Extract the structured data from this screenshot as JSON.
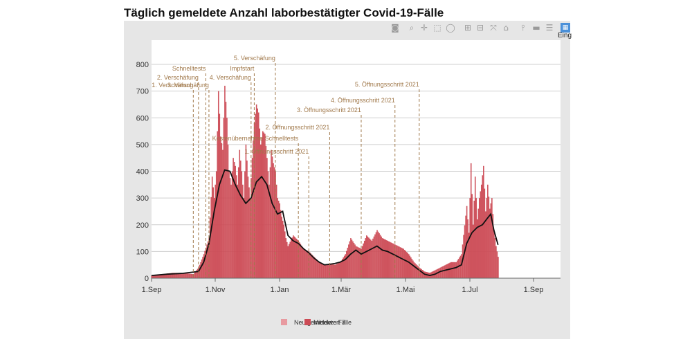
{
  "title": "Täglich gemeldete Anzahl laborbestätigter Covid-19-Fälle",
  "toolbar": {
    "icons": [
      "camera-icon",
      "zoom-icon",
      "pan-icon",
      "box-select-icon",
      "lasso-icon",
      "zoom-in-icon",
      "zoom-out-icon",
      "autoscale-icon",
      "home-icon",
      "spike-lines-icon",
      "hover-closest-icon",
      "hover-compare-icon",
      "chart-icon"
    ],
    "active_label": "Eing"
  },
  "colors": {
    "bars": "#cc4b55",
    "line": "#111111",
    "annotation": "#a0784a",
    "grid": "#cfcfcf"
  },
  "chart_data": {
    "type": "bar",
    "title": "Täglich gemeldete Anzahl laborbestätigter Covid-19-Fälle",
    "x_ticks": [
      "1.Sep",
      "1.Nov",
      "1.Jan",
      "1.Mär",
      "1.Mai",
      "1.Jul",
      "1.Sep"
    ],
    "ylim": [
      0,
      880
    ],
    "y_ticks": [
      0,
      100,
      200,
      300,
      400,
      500,
      600,
      700,
      800
    ],
    "grid": true,
    "legend_position": "bottom",
    "legend": [
      "Neu gemeldete Fälle",
      "Mittelwert 7"
    ],
    "series": [
      {
        "name": "Neu gemeldete Fälle",
        "type": "bar",
        "points": [
          [
            0,
            10
          ],
          [
            10,
            15
          ],
          [
            20,
            20
          ],
          [
            30,
            20
          ],
          [
            40,
            15
          ],
          [
            45,
            40
          ],
          [
            50,
            90
          ],
          [
            55,
            150
          ],
          [
            58,
            380
          ],
          [
            60,
            300
          ],
          [
            62,
            400
          ],
          [
            64,
            700
          ],
          [
            66,
            530
          ],
          [
            68,
            480
          ],
          [
            70,
            720
          ],
          [
            72,
            600
          ],
          [
            74,
            400
          ],
          [
            76,
            350
          ],
          [
            78,
            450
          ],
          [
            80,
            420
          ],
          [
            82,
            350
          ],
          [
            84,
            480
          ],
          [
            86,
            400
          ],
          [
            88,
            300
          ],
          [
            90,
            500
          ],
          [
            92,
            380
          ],
          [
            94,
            300
          ],
          [
            96,
            450
          ],
          [
            98,
            580
          ],
          [
            100,
            650
          ],
          [
            102,
            620
          ],
          [
            104,
            500
          ],
          [
            106,
            550
          ],
          [
            108,
            540
          ],
          [
            110,
            450
          ],
          [
            112,
            350
          ],
          [
            114,
            480
          ],
          [
            116,
            430
          ],
          [
            118,
            400
          ],
          [
            120,
            300
          ],
          [
            122,
            280
          ],
          [
            124,
            230
          ],
          [
            126,
            200
          ],
          [
            128,
            150
          ],
          [
            130,
            120
          ],
          [
            135,
            160
          ],
          [
            140,
            140
          ],
          [
            145,
            110
          ],
          [
            150,
            100
          ],
          [
            155,
            80
          ],
          [
            160,
            60
          ],
          [
            165,
            50
          ],
          [
            170,
            55
          ],
          [
            175,
            50
          ],
          [
            180,
            60
          ],
          [
            185,
            90
          ],
          [
            190,
            150
          ],
          [
            195,
            120
          ],
          [
            200,
            110
          ],
          [
            205,
            160
          ],
          [
            210,
            140
          ],
          [
            215,
            180
          ],
          [
            220,
            150
          ],
          [
            225,
            140
          ],
          [
            230,
            130
          ],
          [
            235,
            120
          ],
          [
            240,
            110
          ],
          [
            245,
            90
          ],
          [
            250,
            60
          ],
          [
            255,
            40
          ],
          [
            260,
            25
          ],
          [
            265,
            20
          ],
          [
            270,
            30
          ],
          [
            275,
            40
          ],
          [
            280,
            50
          ],
          [
            285,
            60
          ],
          [
            290,
            60
          ],
          [
            295,
            90
          ],
          [
            300,
            270
          ],
          [
            302,
            170
          ],
          [
            304,
            430
          ],
          [
            306,
            200
          ],
          [
            308,
            380
          ],
          [
            310,
            220
          ],
          [
            312,
            300
          ],
          [
            314,
            350
          ],
          [
            316,
            420
          ],
          [
            318,
            250
          ],
          [
            320,
            350
          ],
          [
            322,
            260
          ],
          [
            324,
            300
          ],
          [
            326,
            180
          ],
          [
            328,
            120
          ],
          [
            330,
            80
          ]
        ]
      },
      {
        "name": "Mittelwert 7",
        "type": "line",
        "points": [
          [
            0,
            10
          ],
          [
            15,
            15
          ],
          [
            30,
            18
          ],
          [
            45,
            25
          ],
          [
            50,
            60
          ],
          [
            55,
            130
          ],
          [
            60,
            250
          ],
          [
            65,
            350
          ],
          [
            70,
            405
          ],
          [
            75,
            400
          ],
          [
            80,
            350
          ],
          [
            85,
            310
          ],
          [
            90,
            280
          ],
          [
            95,
            300
          ],
          [
            100,
            360
          ],
          [
            105,
            380
          ],
          [
            110,
            350
          ],
          [
            115,
            280
          ],
          [
            120,
            240
          ],
          [
            125,
            250
          ],
          [
            130,
            160
          ],
          [
            135,
            140
          ],
          [
            140,
            130
          ],
          [
            145,
            110
          ],
          [
            150,
            95
          ],
          [
            155,
            75
          ],
          [
            160,
            60
          ],
          [
            165,
            50
          ],
          [
            170,
            52
          ],
          [
            175,
            55
          ],
          [
            180,
            60
          ],
          [
            185,
            70
          ],
          [
            190,
            90
          ],
          [
            195,
            105
          ],
          [
            200,
            90
          ],
          [
            205,
            100
          ],
          [
            210,
            110
          ],
          [
            215,
            120
          ],
          [
            220,
            105
          ],
          [
            225,
            100
          ],
          [
            230,
            90
          ],
          [
            235,
            80
          ],
          [
            240,
            70
          ],
          [
            245,
            60
          ],
          [
            250,
            45
          ],
          [
            255,
            30
          ],
          [
            260,
            15
          ],
          [
            265,
            10
          ],
          [
            270,
            15
          ],
          [
            275,
            25
          ],
          [
            280,
            30
          ],
          [
            285,
            35
          ],
          [
            290,
            40
          ],
          [
            295,
            50
          ],
          [
            300,
            130
          ],
          [
            305,
            170
          ],
          [
            310,
            190
          ],
          [
            315,
            200
          ],
          [
            320,
            225
          ],
          [
            323,
            240
          ],
          [
            326,
            180
          ],
          [
            330,
            125
          ]
        ]
      }
    ],
    "annotations": [
      {
        "label": "1. Verschäfung",
        "x": 40
      },
      {
        "label": "2. Verschäfung",
        "x": 45
      },
      {
        "label": "Schnelltests",
        "x": 52
      },
      {
        "label": "3. Verschäfung",
        "x": 55
      },
      {
        "label": "4. Verschäfung",
        "x": 95
      },
      {
        "label": "Impfstart",
        "x": 98
      },
      {
        "label": "5. Verschäfung",
        "x": 118
      },
      {
        "label": "Kostenübernahme Schnelltests",
        "x": 140
      },
      {
        "label": "1. Öffnungsschritt 2021",
        "x": 150
      },
      {
        "label": "2. Öffnungsschritt 2021",
        "x": 170
      },
      {
        "label": "3. Öffnungsschritt 2021",
        "x": 200
      },
      {
        "label": "4. Öffnungsschritt 2021",
        "x": 232
      },
      {
        "label": "5. Öffnungsschritt 2021",
        "x": 255
      }
    ]
  }
}
